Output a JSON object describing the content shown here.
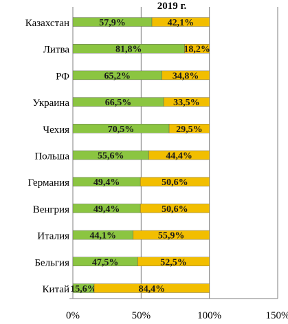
{
  "chart_data": {
    "type": "bar",
    "orientation": "horizontal",
    "stacked": true,
    "title": "2019 г.",
    "categories": [
      "Казахстан",
      "Литва",
      "РФ",
      "Украина",
      "Чехия",
      "Польша",
      "Германия",
      "Венгрия",
      "Италия",
      "Бельгия",
      "Китай"
    ],
    "series": [
      {
        "color": "#8BC541",
        "values": [
          57.9,
          81.8,
          65.2,
          66.5,
          70.5,
          55.6,
          49.4,
          49.4,
          44.1,
          47.5,
          15.6
        ],
        "labels": [
          "57,9%",
          "81,8%",
          "65,2%",
          "66,5%",
          "70,5%",
          "55,6%",
          "49,4%",
          "49,4%",
          "44,1%",
          "47,5%",
          "15,6%"
        ]
      },
      {
        "color": "#F2BE00",
        "values": [
          42.1,
          18.2,
          34.8,
          33.5,
          29.5,
          44.4,
          50.6,
          50.6,
          55.9,
          52.5,
          84.4
        ],
        "labels": [
          "42,1%",
          "18,2%",
          "34,8%",
          "33,5%",
          "29,5%",
          "44,4%",
          "50,6%",
          "50,6%",
          "55,9%",
          "52,5%",
          "84,4%"
        ]
      }
    ],
    "xlim": [
      0,
      150
    ],
    "xticks": [
      "0%",
      "50%",
      "100%",
      "150%"
    ],
    "grid": true,
    "legend": "none"
  }
}
